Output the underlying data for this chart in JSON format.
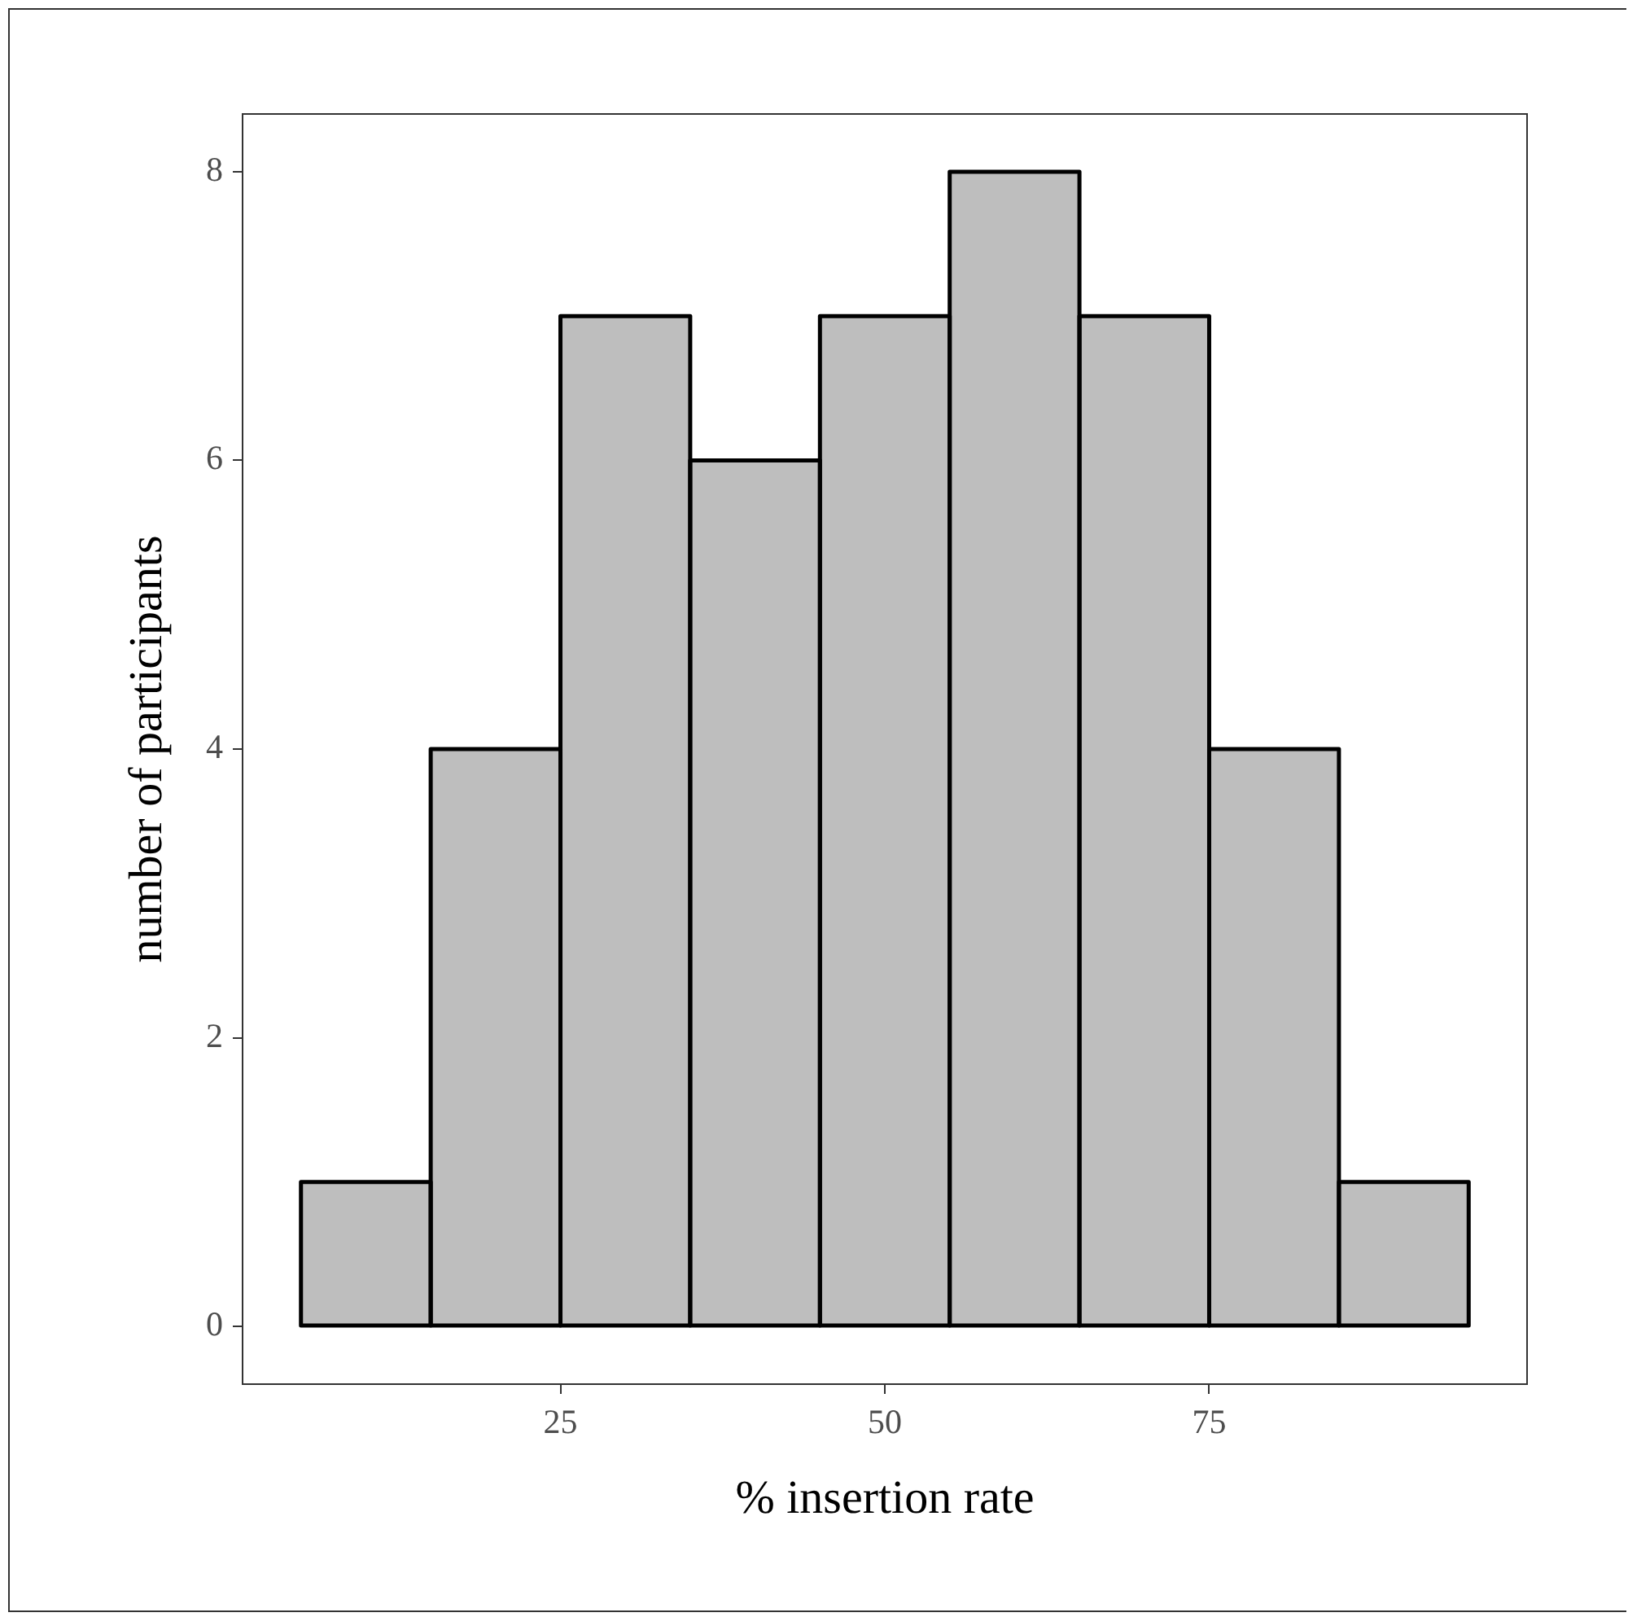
{
  "chart_data": {
    "type": "histogram",
    "xlabel": "% insertion rate",
    "ylabel": "number of participants",
    "bins": [
      5,
      15,
      25,
      35,
      45,
      55,
      65,
      75,
      85,
      95
    ],
    "values": [
      1,
      4,
      7,
      6,
      7,
      8,
      7,
      4,
      1
    ],
    "color": "#bebebe",
    "xlim": [
      0.5,
      99.5
    ],
    "xticks": [
      25,
      50,
      75
    ],
    "ylim": [
      -0.4,
      8.4
    ],
    "yticks": [
      0,
      2,
      4,
      6,
      8
    ],
    "grid": false,
    "legend": false
  }
}
